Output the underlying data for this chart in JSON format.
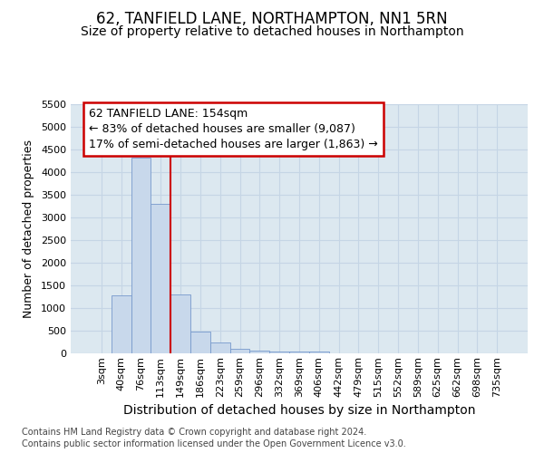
{
  "title": "62, TANFIELD LANE, NORTHAMPTON, NN1 5RN",
  "subtitle": "Size of property relative to detached houses in Northampton",
  "xlabel": "Distribution of detached houses by size in Northampton",
  "ylabel": "Number of detached properties",
  "categories": [
    "3sqm",
    "40sqm",
    "76sqm",
    "113sqm",
    "149sqm",
    "186sqm",
    "223sqm",
    "259sqm",
    "296sqm",
    "332sqm",
    "369sqm",
    "406sqm",
    "442sqm",
    "479sqm",
    "515sqm",
    "552sqm",
    "589sqm",
    "625sqm",
    "662sqm",
    "698sqm",
    "735sqm"
  ],
  "values": [
    0,
    1280,
    4330,
    3300,
    1300,
    480,
    240,
    100,
    70,
    50,
    50,
    50,
    0,
    0,
    0,
    0,
    0,
    0,
    0,
    0,
    0
  ],
  "bar_color": "#c8d8eb",
  "bar_edge_color": "#7799cc",
  "red_line_x": 3.5,
  "ylim": [
    0,
    5500
  ],
  "yticks": [
    0,
    500,
    1000,
    1500,
    2000,
    2500,
    3000,
    3500,
    4000,
    4500,
    5000,
    5500
  ],
  "annotation_title": "62 TANFIELD LANE: 154sqm",
  "annotation_line1": "← 83% of detached houses are smaller (9,087)",
  "annotation_line2": "17% of semi-detached houses are larger (1,863) →",
  "annotation_box_facecolor": "#ffffff",
  "annotation_box_edgecolor": "#cc0000",
  "red_line_color": "#cc0000",
  "grid_color": "#c5d5e5",
  "plot_bg_color": "#dce8f0",
  "fig_bg_color": "#ffffff",
  "footer1": "Contains HM Land Registry data © Crown copyright and database right 2024.",
  "footer2": "Contains public sector information licensed under the Open Government Licence v3.0.",
  "title_fontsize": 12,
  "subtitle_fontsize": 10,
  "xlabel_fontsize": 10,
  "ylabel_fontsize": 9,
  "tick_fontsize": 8,
  "annot_fontsize": 9,
  "footer_fontsize": 7
}
